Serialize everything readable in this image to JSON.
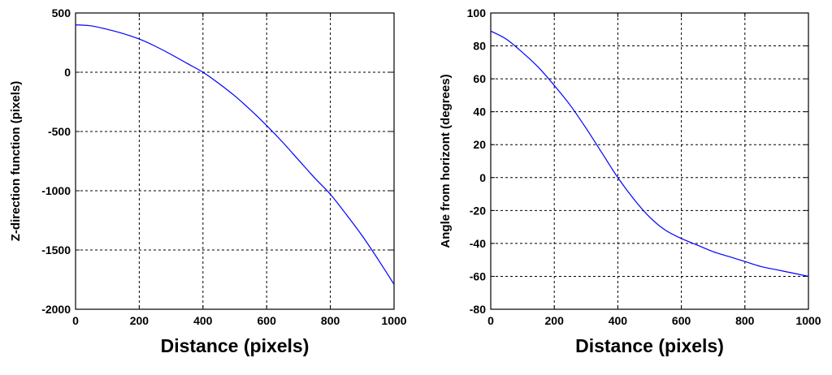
{
  "chart_data": [
    {
      "type": "line",
      "xlabel": "Distance (pixels)",
      "ylabel": "Z-direction function (pixels)",
      "xlim": [
        0,
        1000
      ],
      "ylim": [
        -2000,
        500
      ],
      "xticks": [
        "0",
        "200",
        "400",
        "600",
        "800",
        "1000"
      ],
      "yticks": [
        "-2000",
        "-1500",
        "-1000",
        "-500",
        "0",
        "500"
      ],
      "grid": true,
      "line_color": "#0000ff",
      "series": [
        {
          "x": [
            0,
            50,
            100,
            150,
            200,
            250,
            300,
            350,
            400,
            450,
            500,
            550,
            600,
            650,
            700,
            750,
            800,
            850,
            900,
            950,
            1000
          ],
          "y": [
            400,
            391,
            362,
            326,
            280,
            220,
            150,
            75,
            0,
            -95,
            -200,
            -320,
            -450,
            -590,
            -740,
            -890,
            -1030,
            -1200,
            -1380,
            -1580,
            -1790
          ]
        }
      ]
    },
    {
      "type": "line",
      "xlabel": "Distance (pixels)",
      "ylabel": "Angle from horizont (degrees)",
      "xlim": [
        0,
        1000
      ],
      "ylim": [
        -80,
        100
      ],
      "xticks": [
        "0",
        "200",
        "400",
        "600",
        "800",
        "1000"
      ],
      "yticks": [
        "-80",
        "-60",
        "-40",
        "-20",
        "0",
        "20",
        "40",
        "60",
        "80",
        "100"
      ],
      "grid": true,
      "line_color": "#0000ff",
      "series": [
        {
          "x": [
            0,
            50,
            100,
            150,
            200,
            250,
            300,
            350,
            400,
            450,
            500,
            550,
            600,
            650,
            700,
            750,
            800,
            850,
            900,
            950,
            1000
          ],
          "y": [
            89,
            84,
            76,
            67,
            56,
            44,
            30,
            15,
            0,
            -13,
            -24,
            -32,
            -37,
            -41,
            -45,
            -48,
            -51,
            -54,
            -56,
            -58,
            -60
          ]
        }
      ]
    }
  ]
}
